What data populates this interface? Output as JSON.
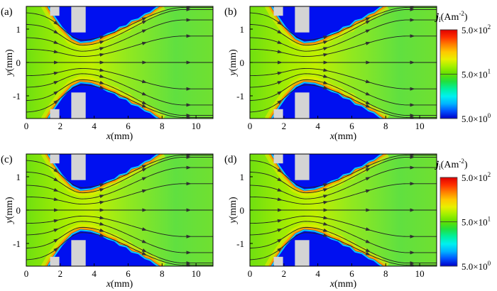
{
  "chart_data": {
    "type": "heatmap",
    "description_panels": [
      "(a)",
      "(b)",
      "(c)",
      "(d)"
    ],
    "xlabel": "x(mm)",
    "ylabel": "y(mm)",
    "xlim": [
      0,
      11
    ],
    "ylim": [
      -1.7,
      1.7
    ],
    "xticks": [
      0,
      2,
      4,
      6,
      8,
      10
    ],
    "yticks": [
      1,
      0,
      -1
    ],
    "colorbar": {
      "label_main": "j",
      "label_sub": "i",
      "label_unit": "(Am",
      "label_exp": "-2",
      "label_close": ")",
      "scale": "log",
      "range": [
        5.0,
        500.0
      ],
      "ticks": [
        {
          "mant": "5.0×10",
          "exp": "2",
          "value": 500
        },
        {
          "mant": "5.0×10",
          "exp": "1",
          "value": 50
        },
        {
          "mant": "5.0×10",
          "exp": "0",
          "value": 5
        }
      ],
      "colors": [
        "#0000c8",
        "#0050ff",
        "#00b4ff",
        "#00f0f0",
        "#00f0a0",
        "#20e040",
        "#60e000",
        "#a0f000",
        "#e8f000",
        "#ffc800",
        "#ff8000",
        "#ff3000",
        "#e00000"
      ]
    },
    "colorbars_shown_next_to": [
      "(b)",
      "(d)"
    ]
  }
}
